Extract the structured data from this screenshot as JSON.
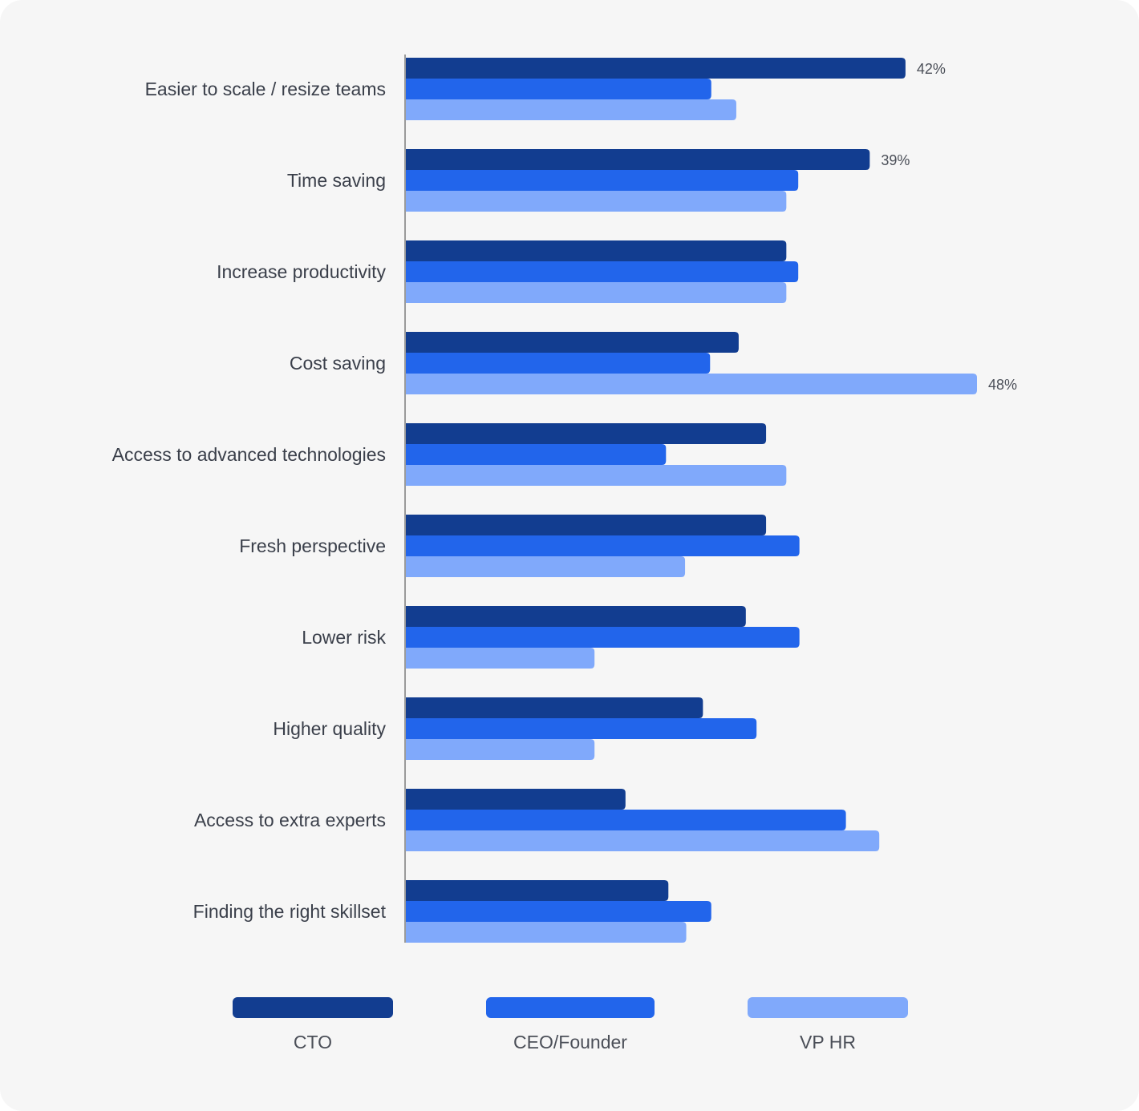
{
  "chart_data": {
    "type": "bar",
    "orientation": "horizontal",
    "categories": [
      "Easier to scale / resize teams",
      "Time saving",
      "Increase productivity",
      "Cost saving",
      "Access to advanced technologies",
      "Fresh perspective",
      "Lower risk",
      "Higher quality",
      "Access to extra experts",
      "Finding the right skillset"
    ],
    "series": [
      {
        "name": "CTO",
        "color": "#123d90",
        "values": [
          42,
          39,
          32,
          28,
          30.3,
          30.3,
          28.6,
          25,
          18.5,
          22.1
        ]
      },
      {
        "name": "CEO/Founder",
        "color": "#2265eb",
        "values": [
          25.7,
          33,
          33,
          25.6,
          21.9,
          33.1,
          33.1,
          29.5,
          37,
          25.7
        ]
      },
      {
        "name": "VP HR",
        "color": "#80a9fb",
        "values": [
          27.8,
          32,
          32,
          48,
          32,
          23.5,
          15.9,
          15.9,
          39.8,
          23.6
        ]
      }
    ],
    "data_labels": [
      {
        "category_index": 0,
        "series_index": 0,
        "text": "42%"
      },
      {
        "category_index": 1,
        "series_index": 0,
        "text": "39%"
      },
      {
        "category_index": 3,
        "series_index": 2,
        "text": "48%"
      }
    ],
    "xlim": [
      0,
      48
    ],
    "grid": false,
    "legend_position": "bottom",
    "title": "",
    "xlabel": "",
    "ylabel": ""
  }
}
